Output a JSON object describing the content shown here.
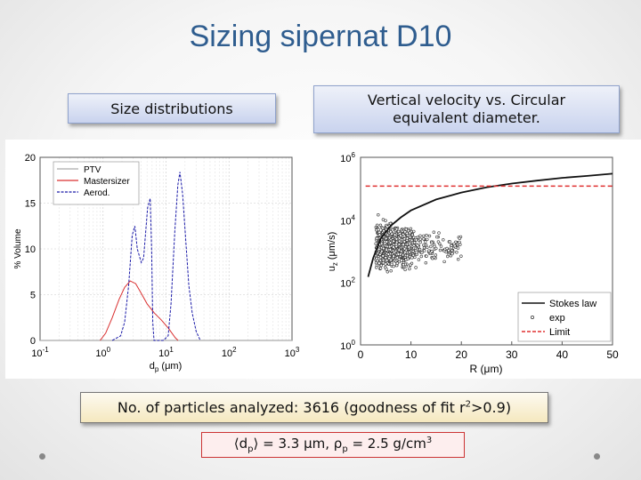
{
  "slide": {
    "title": "Sizing sipernat D10",
    "left_label": "Size distributions",
    "right_label_line1": "Vertical velocity vs. Circular",
    "right_label_line2": "equivalent diameter.",
    "summary_prefix": "No. of particles analyzed: 3616 (goodness of fit r",
    "summary_sup": "2",
    "summary_suffix": ">0.9)",
    "formula": {
      "lhs": "⟨d",
      "lhs_sub": "p",
      "lhs_close": "⟩ = 3.3 μm, ρ",
      "rho_sub": "p",
      "rhs": " = 2.5 g/cm",
      "rhs_sup": "3"
    }
  },
  "chart_data": [
    {
      "type": "line",
      "title": "",
      "xlabel_main": "d",
      "xlabel_sub": "p",
      "xlabel_unit": " (μm)",
      "ylabel": "% Volume",
      "xscale": "log",
      "xlim": [
        0.1,
        1000
      ],
      "ylim": [
        0,
        20
      ],
      "x_ticks": [
        {
          "base": "10",
          "exp": "-1",
          "value": 0.1
        },
        {
          "base": "10",
          "exp": "0",
          "value": 1
        },
        {
          "base": "10",
          "exp": "1",
          "value": 10
        },
        {
          "base": "10",
          "exp": "2",
          "value": 100
        },
        {
          "base": "10",
          "exp": "3",
          "value": 1000
        }
      ],
      "y_ticks": [
        "0",
        "5",
        "10",
        "15",
        "20"
      ],
      "grid": true,
      "legend_position": "top-left",
      "series": [
        {
          "name": "PTV",
          "color": "#aaaaaa",
          "points": [
            [
              0.1,
              0
            ],
            [
              1000,
              0
            ]
          ]
        },
        {
          "name": "Mastersizer",
          "color": "#d93030",
          "points": [
            [
              0.9,
              0
            ],
            [
              1.1,
              0.8
            ],
            [
              1.4,
              2.5
            ],
            [
              1.8,
              4.5
            ],
            [
              2.2,
              5.8
            ],
            [
              2.7,
              6.5
            ],
            [
              3.3,
              6.2
            ],
            [
              4,
              5.2
            ],
            [
              5,
              4
            ],
            [
              6.5,
              3
            ],
            [
              8.5,
              2.2
            ],
            [
              11,
              1.3
            ],
            [
              14,
              0.3
            ],
            [
              15.5,
              0
            ]
          ]
        },
        {
          "name": "Aerod.",
          "color": "#1a1aa8",
          "points": [
            [
              1.4,
              0
            ],
            [
              1.9,
              0.5
            ],
            [
              2.2,
              2
            ],
            [
              2.55,
              6
            ],
            [
              2.9,
              11.5
            ],
            [
              3.2,
              12.5
            ],
            [
              3.5,
              10
            ],
            [
              4.05,
              8.5
            ],
            [
              4.4,
              9
            ],
            [
              5.1,
              14.5
            ],
            [
              5.6,
              15.5
            ],
            [
              5.9,
              10
            ],
            [
              6.15,
              2
            ],
            [
              6.45,
              0
            ],
            [
              9,
              0
            ],
            [
              10.8,
              0.5
            ],
            [
              12,
              4
            ],
            [
              13.8,
              12
            ],
            [
              15.4,
              17
            ],
            [
              16.6,
              18.4
            ],
            [
              18.3,
              16
            ],
            [
              20.5,
              11
            ],
            [
              23,
              6
            ],
            [
              26,
              3
            ],
            [
              30,
              1
            ],
            [
              35,
              0
            ]
          ]
        }
      ]
    },
    {
      "type": "scatter",
      "title": "",
      "xlabel": "R (μm)",
      "ylabel_main": "u",
      "ylabel_sub": "z",
      "ylabel_unit": " (μm/s)",
      "yscale": "log",
      "xlim": [
        0,
        50
      ],
      "ylim": [
        1,
        1000000
      ],
      "x_ticks": [
        "0",
        "10",
        "20",
        "30",
        "40",
        "50"
      ],
      "y_ticks": [
        {
          "base": "10",
          "exp": "0",
          "value": 1
        },
        {
          "base": "10",
          "exp": "2",
          "value": 100
        },
        {
          "base": "10",
          "exp": "4",
          "value": 10000
        },
        {
          "base": "10",
          "exp": "6",
          "value": 1000000
        }
      ],
      "legend_position": "bottom-right",
      "stokes_law": {
        "name": "Stokes law",
        "color": "#111111",
        "points": [
          [
            1.5,
            150
          ],
          [
            2.5,
            600
          ],
          [
            4,
            2500
          ],
          [
            6,
            6500
          ],
          [
            8,
            12000
          ],
          [
            10,
            20000
          ],
          [
            15,
            45000
          ],
          [
            20,
            75000
          ],
          [
            25,
            110000
          ],
          [
            30,
            145000
          ],
          [
            35,
            180000
          ],
          [
            40,
            220000
          ],
          [
            45,
            255000
          ],
          [
            50,
            300000
          ]
        ]
      },
      "limit": {
        "name": "Limit",
        "color": "#e03030",
        "value": 120000
      },
      "exp": {
        "name": "exp",
        "count": 3616,
        "x_range": [
          3,
          20
        ],
        "y_log_center": 3.15,
        "y_log_spread": 0.35
      },
      "legend": [
        "Stokes law",
        "exp",
        "Limit"
      ]
    }
  ]
}
